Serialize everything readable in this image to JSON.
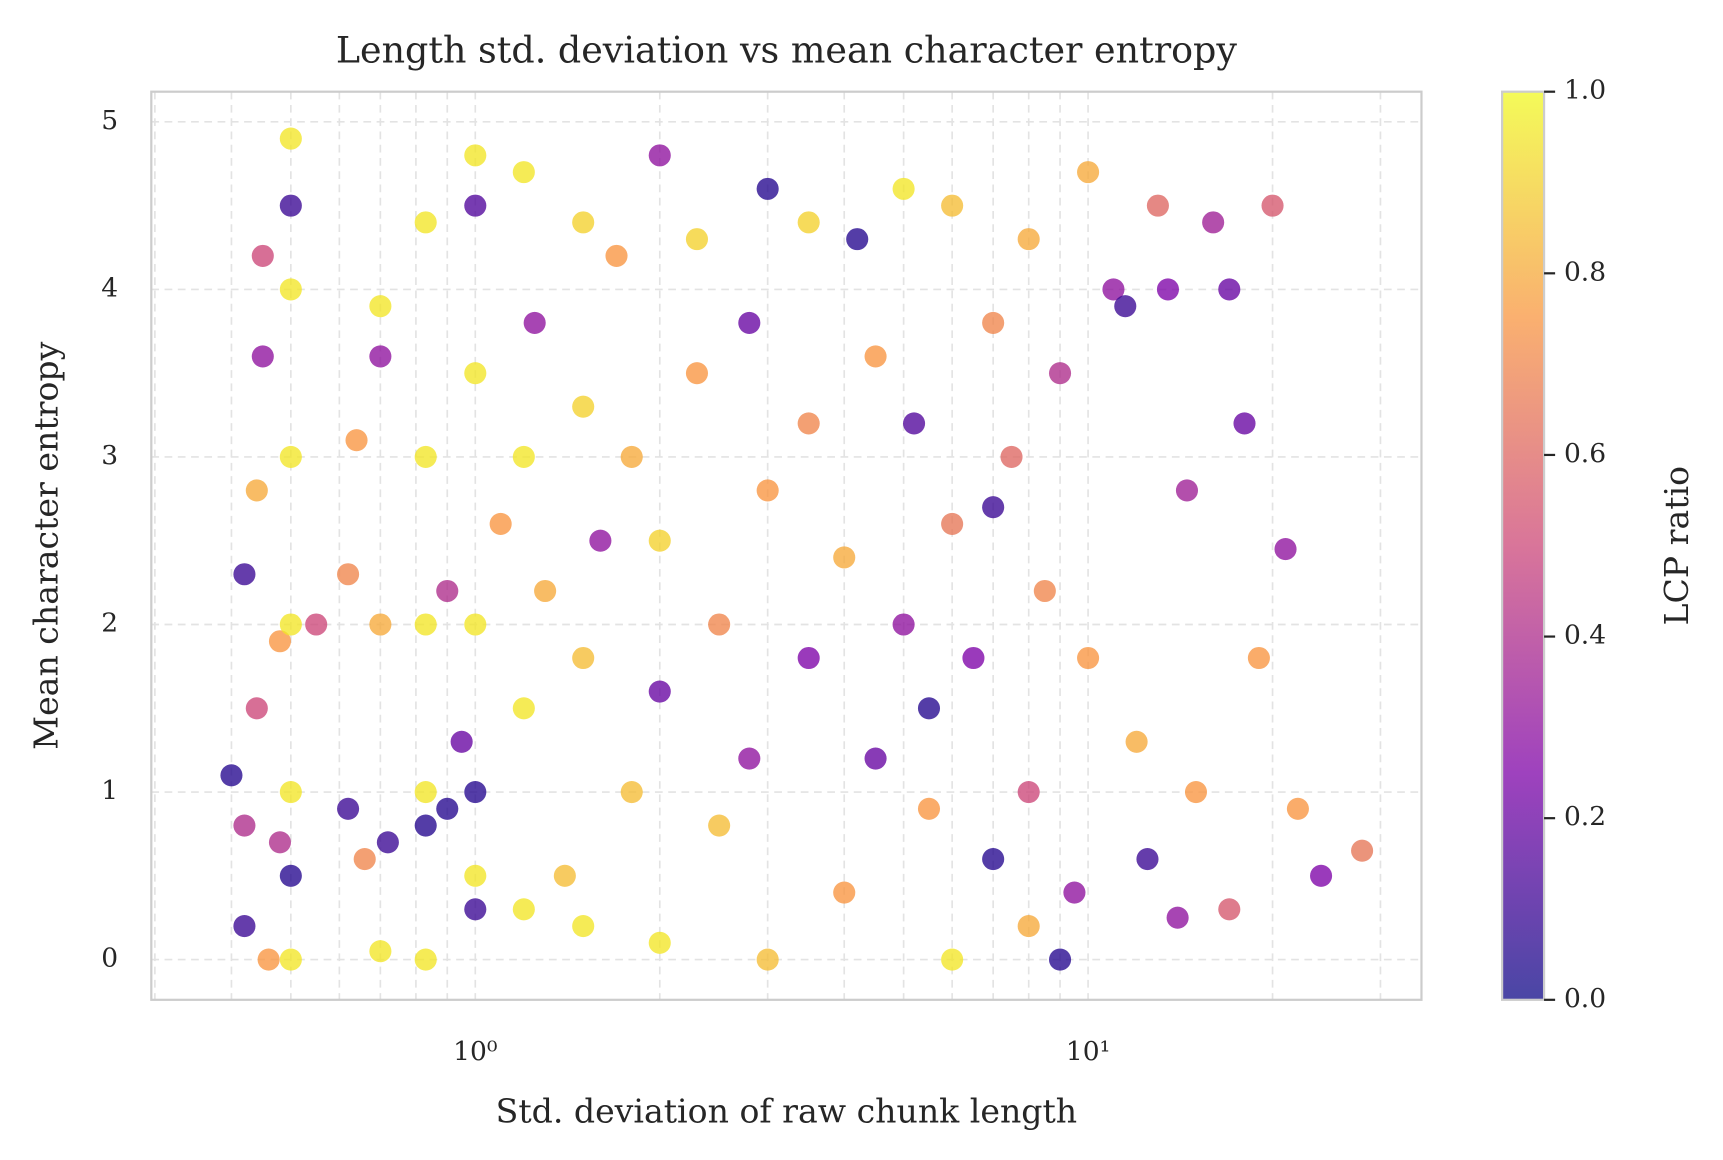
{
  "chart_data": {
    "type": "scatter",
    "title": "Length std. deviation vs mean character entropy",
    "xlabel": "Std. deviation of raw chunk length",
    "ylabel": "Mean character entropy",
    "xscale": "log",
    "xlim": [
      0.296,
      35
    ],
    "xticks": [
      {
        "value": 1,
        "label": "10⁰"
      },
      {
        "value": 10,
        "label": "10¹"
      }
    ],
    "xminor_ticks": [
      0.3,
      0.4,
      0.5,
      0.6,
      0.7,
      0.8,
      0.9,
      2,
      3,
      4,
      5,
      6,
      7,
      8,
      9,
      20,
      30
    ],
    "ylim": [
      -0.24,
      5.18
    ],
    "yticks": [
      0,
      1,
      2,
      3,
      4,
      5
    ],
    "grid": true,
    "colormap": "plasma",
    "x": [
      0.4,
      0.42,
      0.42,
      0.42,
      0.44,
      0.44,
      0.45,
      0.45,
      0.46,
      0.48,
      0.48,
      0.5,
      0.5,
      0.5,
      0.5,
      0.5,
      0.5,
      0.5,
      0.5,
      0.55,
      0.62,
      0.62,
      0.64,
      0.66,
      0.7,
      0.7,
      0.7,
      0.7,
      0.72,
      0.83,
      0.83,
      0.83,
      0.83,
      0.83,
      0.83,
      0.9,
      0.9,
      0.95,
      1.0,
      1.0,
      1.0,
      1.0,
      1.0,
      1.0,
      1.0,
      1.1,
      1.2,
      1.2,
      1.2,
      1.2,
      1.25,
      1.3,
      1.4,
      1.5,
      1.5,
      1.5,
      1.5,
      1.6,
      1.7,
      1.8,
      1.8,
      2.0,
      2.0,
      2.0,
      2.0,
      2.3,
      2.3,
      2.5,
      2.5,
      2.8,
      2.8,
      3.0,
      3.0,
      3.0,
      3.5,
      3.5,
      3.5,
      4.0,
      4.0,
      4.2,
      4.5,
      4.5,
      5.0,
      5.0,
      5.2,
      5.5,
      5.5,
      6.0,
      6.0,
      6.0,
      6.5,
      7.0,
      7.0,
      7.0,
      7.5,
      8.0,
      8.0,
      8.0,
      8.5,
      9.0,
      9.0,
      9.5,
      10.0,
      10.0,
      11.0,
      11.5,
      12.0,
      12.5,
      13.0,
      13.5,
      14.0,
      14.5,
      15.0,
      16.0,
      17.0,
      17.0,
      18.0,
      19.0,
      20.0,
      21.0,
      22.0,
      24.0,
      28.0
    ],
    "values": [
      1.1,
      2.3,
      0.2,
      0.8,
      1.5,
      2.8,
      4.2,
      3.6,
      0.0,
      1.9,
      0.7,
      4.9,
      4.0,
      3.0,
      2.0,
      1.0,
      0.0,
      0.5,
      4.5,
      2.0,
      0.9,
      2.3,
      3.1,
      0.6,
      3.6,
      2.0,
      0.05,
      3.9,
      0.7,
      4.4,
      3.0,
      2.0,
      1.0,
      0.0,
      0.8,
      0.9,
      2.2,
      1.3,
      4.8,
      3.5,
      2.0,
      0.5,
      1.0,
      0.3,
      4.5,
      2.6,
      4.7,
      3.0,
      1.5,
      0.3,
      3.8,
      2.2,
      0.5,
      4.4,
      3.3,
      1.8,
      0.2,
      2.5,
      4.2,
      3.0,
      1.0,
      4.8,
      2.5,
      0.1,
      1.6,
      4.3,
      3.5,
      2.0,
      0.8,
      3.8,
      1.2,
      4.6,
      2.8,
      0.0,
      4.4,
      1.8,
      3.2,
      2.4,
      0.4,
      4.3,
      3.6,
      1.2,
      4.6,
      2.0,
      3.2,
      0.9,
      1.5,
      4.5,
      2.6,
      0.0,
      1.8,
      2.7,
      0.6,
      3.8,
      3.0,
      4.3,
      1.0,
      0.2,
      2.2,
      3.5,
      0.0,
      0.4,
      4.7,
      1.8,
      4.0,
      3.9,
      1.3,
      0.6,
      4.5,
      4.0,
      0.25,
      2.8,
      1.0,
      4.4,
      4.0,
      0.3,
      3.2,
      1.8,
      4.5,
      2.45,
      0.9,
      0.5,
      0.65
    ],
    "color_values": [
      0.05,
      0.1,
      0.1,
      0.4,
      0.5,
      0.8,
      0.5,
      0.3,
      0.75,
      0.75,
      0.4,
      0.95,
      0.95,
      0.95,
      0.95,
      0.95,
      0.95,
      0.05,
      0.1,
      0.5,
      0.1,
      0.7,
      0.75,
      0.7,
      0.3,
      0.8,
      0.95,
      0.95,
      0.1,
      0.95,
      0.95,
      0.95,
      0.95,
      0.95,
      0.05,
      0.05,
      0.4,
      0.2,
      0.95,
      0.95,
      0.95,
      0.95,
      0.05,
      0.1,
      0.15,
      0.75,
      0.95,
      0.95,
      0.95,
      0.95,
      0.3,
      0.8,
      0.85,
      0.9,
      0.9,
      0.85,
      0.95,
      0.3,
      0.75,
      0.8,
      0.85,
      0.3,
      0.9,
      0.95,
      0.2,
      0.9,
      0.75,
      0.7,
      0.85,
      0.2,
      0.3,
      0.05,
      0.75,
      0.85,
      0.9,
      0.25,
      0.7,
      0.8,
      0.75,
      0.05,
      0.75,
      0.2,
      0.95,
      0.3,
      0.15,
      0.75,
      0.05,
      0.85,
      0.65,
      0.95,
      0.25,
      0.1,
      0.05,
      0.7,
      0.6,
      0.8,
      0.5,
      0.8,
      0.7,
      0.4,
      0.05,
      0.3,
      0.8,
      0.75,
      0.3,
      0.1,
      0.8,
      0.1,
      0.6,
      0.25,
      0.3,
      0.35,
      0.75,
      0.35,
      0.2,
      0.55,
      0.2,
      0.75,
      0.55,
      0.3,
      0.75,
      0.25,
      0.65
    ],
    "colorbar": {
      "label": "LCP ratio",
      "lim": [
        0,
        1
      ],
      "ticks": [
        {
          "value": 0,
          "label": "0.0"
        },
        {
          "value": 0.2,
          "label": "0.2"
        },
        {
          "value": 0.4,
          "label": "0.4"
        },
        {
          "value": 0.6,
          "label": "0.6"
        },
        {
          "value": 0.8,
          "label": "0.8"
        },
        {
          "value": 1,
          "label": "1.0"
        }
      ]
    }
  }
}
